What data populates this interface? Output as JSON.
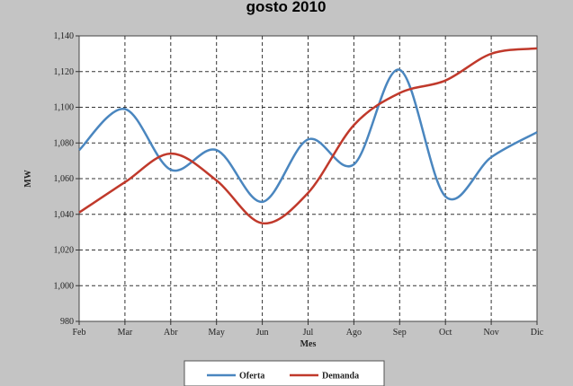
{
  "chart_data": {
    "type": "line",
    "title": "gosto 2010",
    "xlabel": "Mes",
    "ylabel": "MW",
    "categories": [
      "Feb",
      "Mar",
      "Abr",
      "May",
      "Jun",
      "Jul",
      "Ago",
      "Sep",
      "Oct",
      "Nov",
      "Dic"
    ],
    "ylim": [
      980,
      1140
    ],
    "yticks": [
      980,
      1000,
      1020,
      1040,
      1060,
      1080,
      1100,
      1120,
      1140
    ],
    "ytick_labels": [
      "980",
      "1,000",
      "1,020",
      "1,040",
      "1,060",
      "1,080",
      "1,100",
      "1,120",
      "1,140"
    ],
    "grid": true,
    "legend_position": "bottom",
    "series": [
      {
        "name": "Oferta",
        "color": "#4a86bf",
        "values": [
          1076,
          1099,
          1065,
          1076,
          1047,
          1082,
          1068,
          1121,
          1050,
          1072,
          1086
        ]
      },
      {
        "name": "Demanda",
        "color": "#c0392b",
        "values": [
          1041,
          1058,
          1074,
          1059,
          1035,
          1052,
          1090,
          1108,
          1115,
          1130,
          1133
        ]
      }
    ]
  }
}
